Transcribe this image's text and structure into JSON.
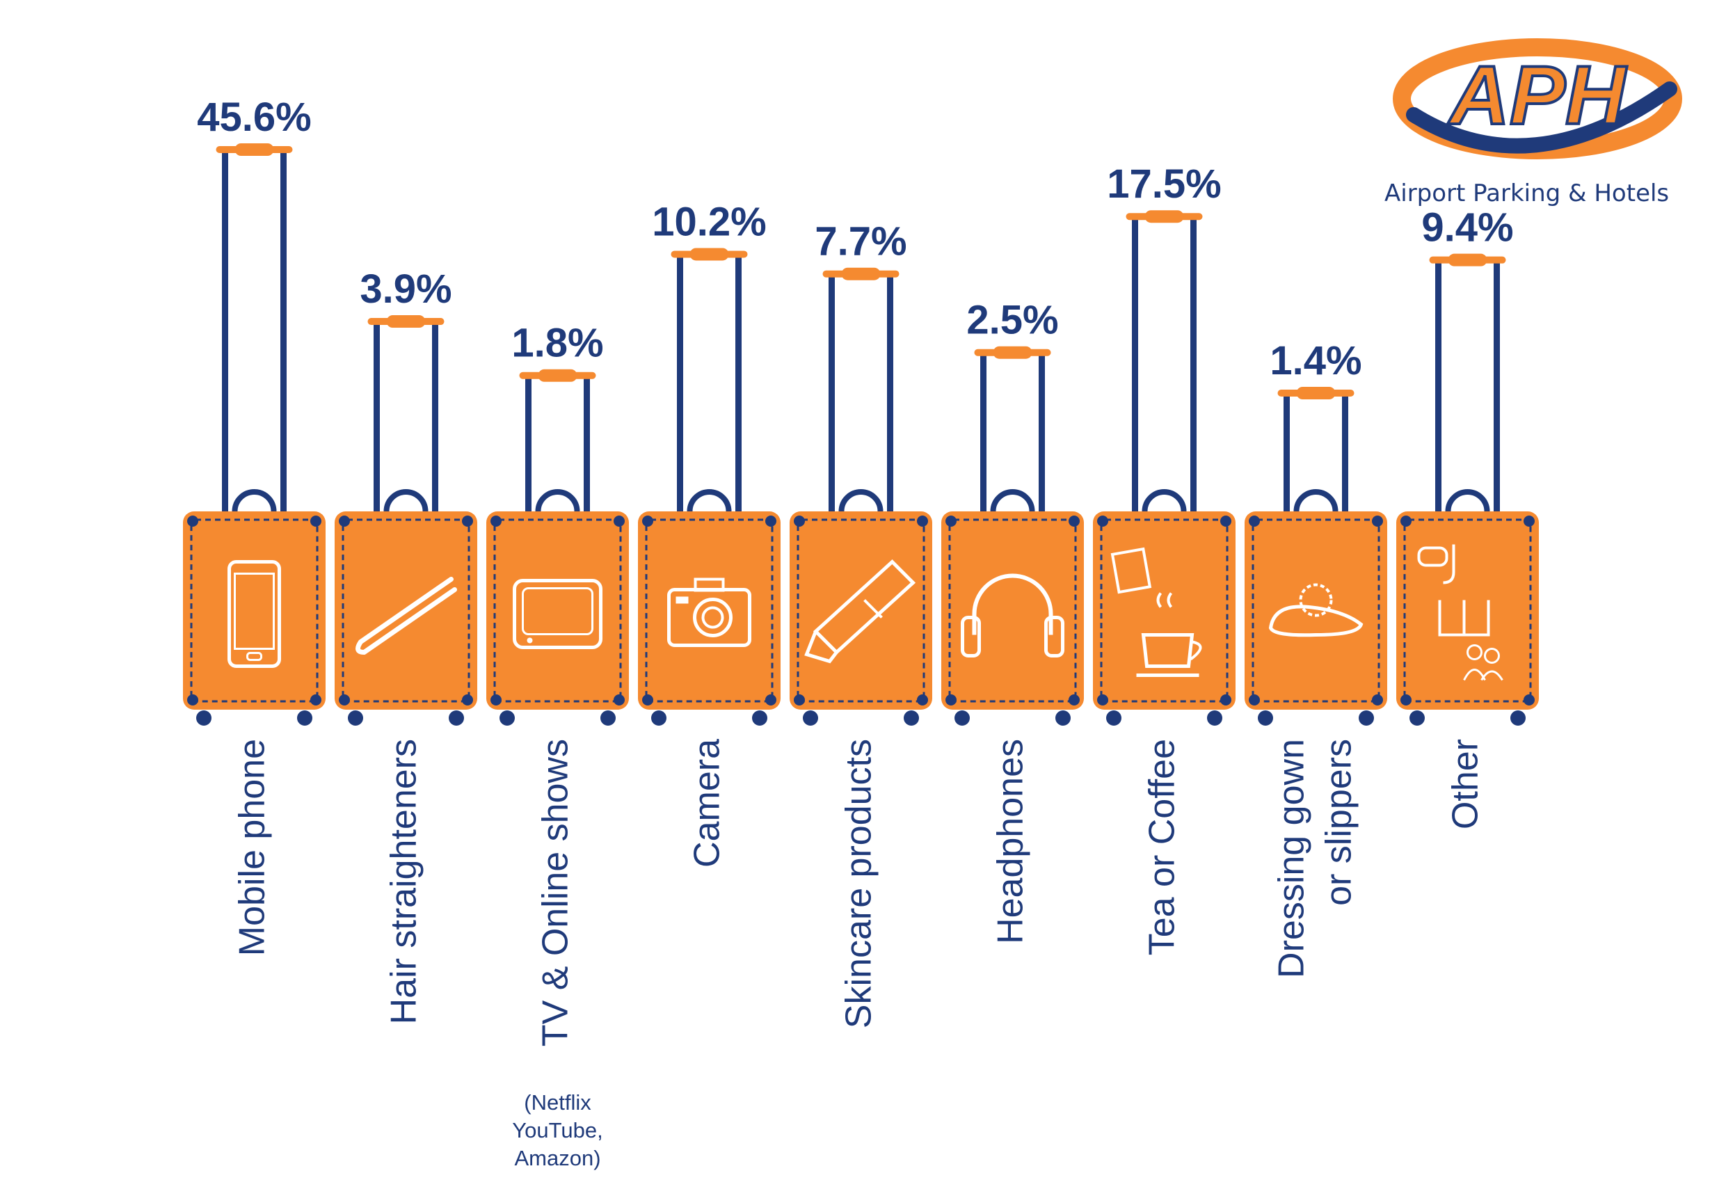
{
  "brand": {
    "logo_text": "APH",
    "tagline": "Airport Parking & Hotels",
    "colors": {
      "orange": "#f58a30",
      "navy": "#1f3a7a",
      "white": "#ffffff"
    }
  },
  "chart_data": {
    "type": "bar",
    "title": "",
    "xlabel": "",
    "ylabel": "",
    "ylim": [
      0,
      50
    ],
    "grid": false,
    "legend": "none",
    "unit": "%",
    "categories": [
      "Mobile phone",
      "Hair straighteners",
      "TV & Online shows",
      "Camera",
      "Skincare products",
      "Headphones",
      "Tea or Coffee",
      "Dressing gown",
      "Other"
    ],
    "category_sublines": [
      "",
      "",
      "",
      "",
      "",
      "",
      "",
      "or slippers",
      ""
    ],
    "values": [
      45.6,
      3.9,
      1.8,
      10.2,
      7.7,
      2.5,
      17.5,
      1.4,
      9.4
    ],
    "value_labels": [
      "45.6%",
      "3.9%",
      "1.8%",
      "10.2%",
      "7.7%",
      "2.5%",
      "17.5%",
      "1.4%",
      "9.4%"
    ],
    "icons": [
      "phone-icon",
      "hair-straightener-icon",
      "tv-icon",
      "camera-icon",
      "skincare-tube-icon",
      "headphones-icon",
      "tea-coffee-icon",
      "slipper-icon",
      "snorkel-book-people-icon"
    ],
    "annotations": [
      {
        "category": "TV & Online shows",
        "lines": [
          "(Netflix",
          "YouTube,",
          "Amazon)"
        ]
      }
    ]
  }
}
